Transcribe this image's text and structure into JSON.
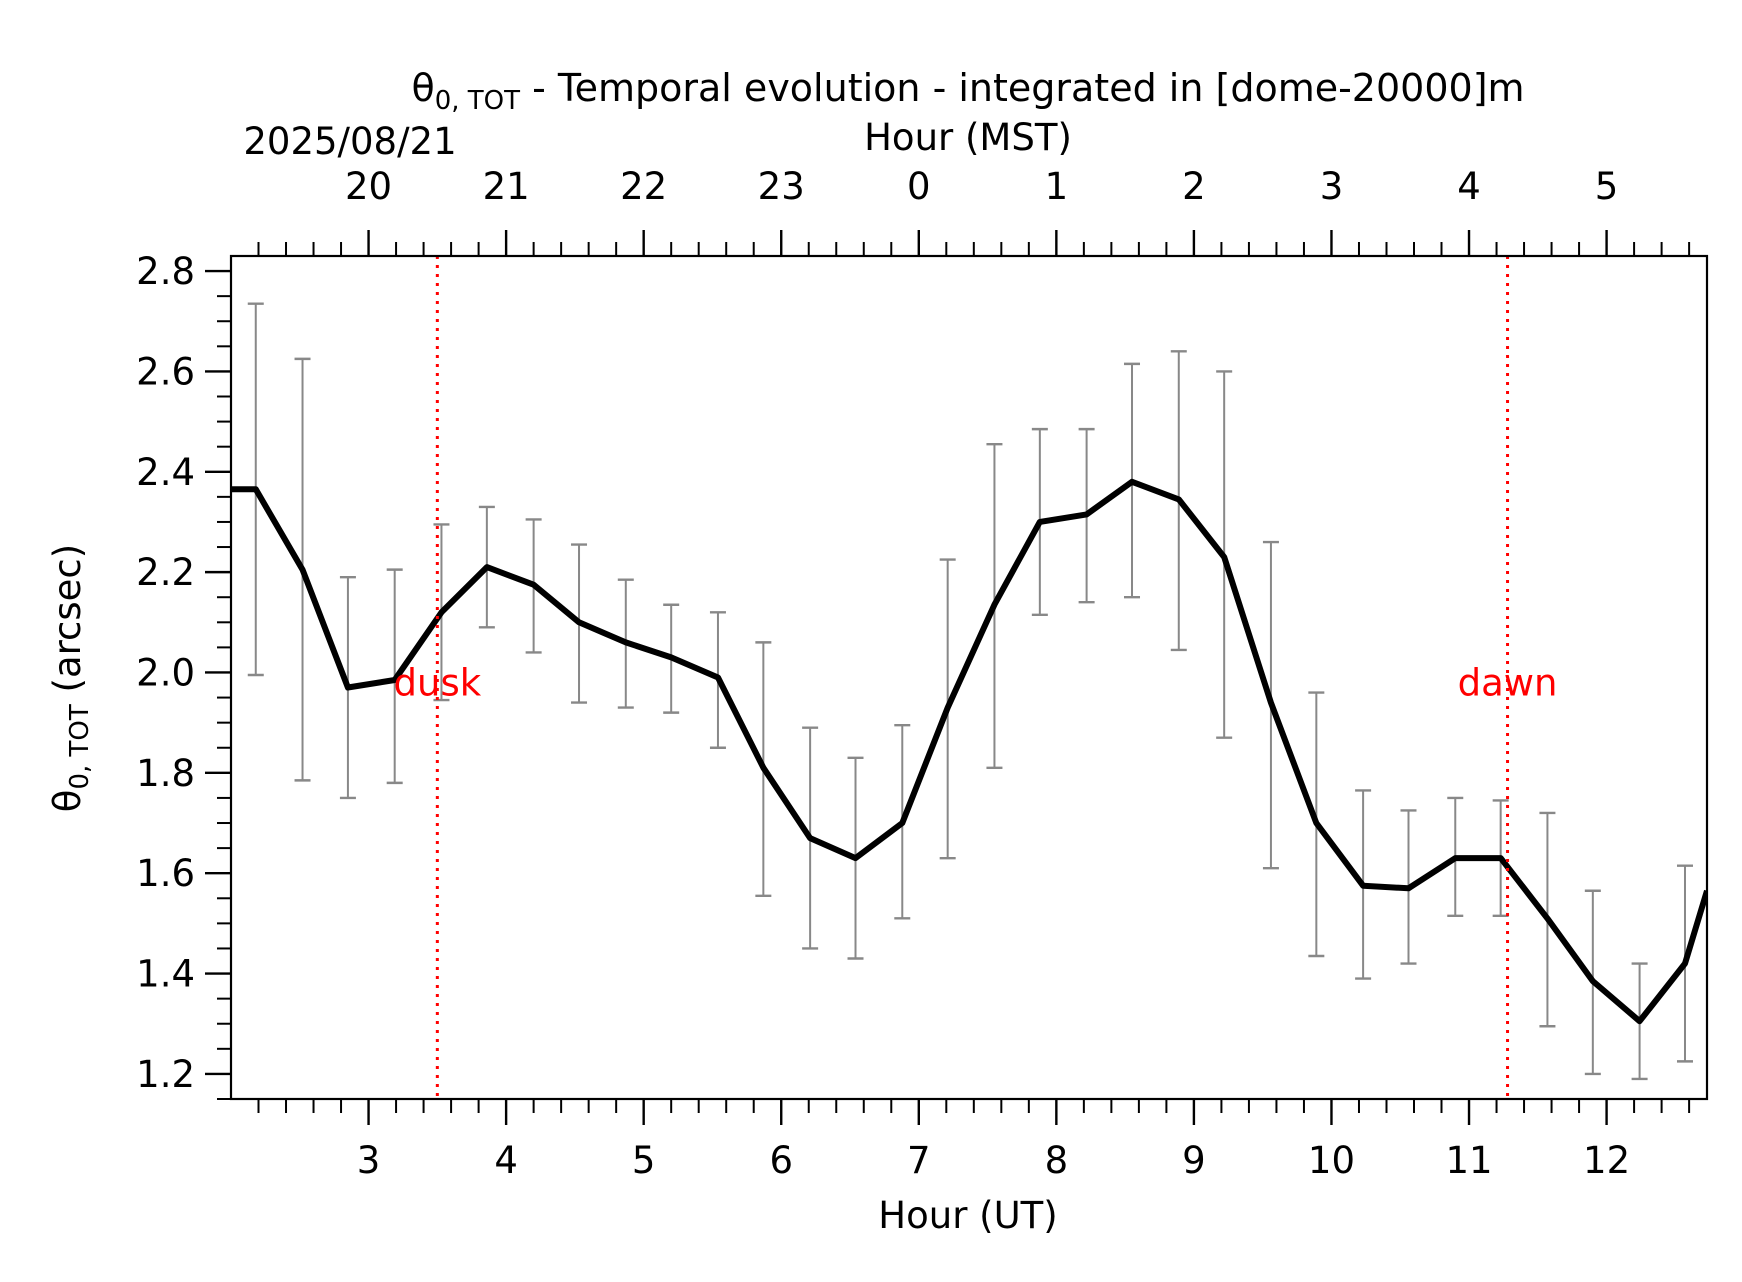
{
  "chart_data": {
    "type": "line",
    "title_parts": [
      "θ",
      "0, TOT",
      " - Temporal evolution - integrated in [dome-20000]m"
    ],
    "date_label": "2025/08/21",
    "xlabel": "Hour (UT)",
    "x2label": "Hour (MST)",
    "ylabel_parts": [
      "θ",
      "0, TOT",
      " (arcsec)"
    ],
    "xlim": [
      2.0,
      12.73
    ],
    "ylim": [
      1.15,
      2.83
    ],
    "x_ticks": [
      3,
      4,
      5,
      6,
      7,
      8,
      9,
      10,
      11,
      12
    ],
    "x_tick_labels": [
      "3",
      "4",
      "5",
      "6",
      "7",
      "8",
      "9",
      "10",
      "11",
      "12"
    ],
    "x2_ticks": [
      3,
      4,
      5,
      6,
      7,
      8,
      9,
      10,
      11,
      12
    ],
    "x2_tick_labels": [
      "20",
      "21",
      "22",
      "23",
      "0",
      "1",
      "2",
      "3",
      "4",
      "5"
    ],
    "y_ticks": [
      1.2,
      1.4,
      1.6,
      1.8,
      2.0,
      2.2,
      2.4,
      2.6,
      2.8
    ],
    "y_tick_labels": [
      "1.2",
      "1.4",
      "1.6",
      "1.8",
      "2.0",
      "2.2",
      "2.4",
      "2.6",
      "2.8"
    ],
    "series": [
      {
        "color": "#000000",
        "x": [
          2.0,
          2.18,
          2.52,
          2.85,
          3.19,
          3.53,
          3.86,
          4.2,
          4.53,
          4.87,
          5.2,
          5.54,
          5.87,
          6.21,
          6.54,
          6.88,
          7.21,
          7.55,
          7.88,
          8.22,
          8.55,
          8.89,
          9.22,
          9.56,
          9.89,
          10.23,
          10.56,
          10.9,
          11.23,
          11.57,
          11.9,
          12.24,
          12.57,
          12.73
        ],
        "y": [
          2.365,
          2.365,
          2.205,
          1.97,
          1.985,
          2.12,
          2.21,
          2.175,
          2.1,
          2.06,
          2.03,
          1.99,
          1.81,
          1.67,
          1.63,
          1.7,
          1.93,
          2.135,
          2.3,
          2.315,
          2.38,
          2.345,
          2.23,
          1.94,
          1.7,
          1.575,
          1.57,
          1.63,
          1.63,
          1.51,
          1.385,
          1.305,
          1.42,
          1.565
        ]
      }
    ],
    "error_bars": {
      "color": "#888888",
      "x": [
        2.18,
        2.52,
        2.85,
        3.19,
        3.53,
        3.86,
        4.2,
        4.53,
        4.87,
        5.2,
        5.54,
        5.87,
        6.21,
        6.54,
        6.88,
        7.21,
        7.55,
        7.88,
        8.22,
        8.55,
        8.89,
        9.22,
        9.56,
        9.89,
        10.23,
        10.56,
        10.9,
        11.23,
        11.57,
        11.9,
        12.24,
        12.57
      ],
      "lower": [
        1.995,
        1.785,
        1.75,
        1.78,
        1.945,
        2.09,
        2.04,
        1.94,
        1.93,
        1.92,
        1.85,
        1.555,
        1.45,
        1.43,
        1.51,
        1.63,
        1.81,
        2.115,
        2.14,
        2.15,
        2.045,
        1.87,
        1.61,
        1.435,
        1.39,
        1.42,
        1.515,
        1.515,
        1.295,
        1.2,
        1.19,
        1.225
      ],
      "upper": [
        2.735,
        2.625,
        2.19,
        2.205,
        2.295,
        2.33,
        2.305,
        2.255,
        2.185,
        2.135,
        2.12,
        2.06,
        1.89,
        1.83,
        1.895,
        2.225,
        2.455,
        2.485,
        2.485,
        2.615,
        2.64,
        2.6,
        2.26,
        1.96,
        1.765,
        1.725,
        1.75,
        1.745,
        1.72,
        1.565,
        1.42,
        1.615
      ]
    },
    "vlines": [
      {
        "x": 3.5,
        "label": "dusk",
        "color": "#ff0000",
        "label_y": 1.98
      },
      {
        "x": 11.28,
        "label": "dawn",
        "color": "#ff0000",
        "label_y": 1.98
      }
    ],
    "grid": false
  }
}
